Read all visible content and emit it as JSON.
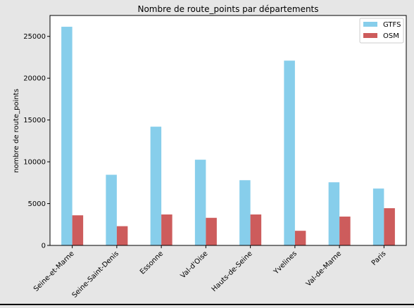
{
  "chart_data": {
    "type": "bar",
    "title": "Nombre de route_points par départements",
    "xlabel": "",
    "ylabel": "nombre de route_points",
    "categories": [
      "Seine-et-Marne",
      "Seine-Saint-Denis",
      "Essonne",
      "Val-d'Oise",
      "Hauts-de-Seine",
      "Yvelines",
      "Val-de-Marne",
      "Paris"
    ],
    "series": [
      {
        "name": "GTFS",
        "color": "#87ceeb",
        "values": [
          26150,
          8450,
          14200,
          10250,
          7800,
          22100,
          7550,
          6800
        ]
      },
      {
        "name": "OSM",
        "color": "#cd5c5c",
        "values": [
          3600,
          2300,
          3700,
          3300,
          3700,
          1750,
          3450,
          4450
        ]
      }
    ],
    "yticks": [
      0,
      5000,
      10000,
      15000,
      20000,
      25000
    ],
    "ylim": [
      0,
      27500
    ],
    "grid": false,
    "legend_position": "top-right"
  },
  "colors": {
    "background": "#e6e6e6",
    "plot_background": "#ffffff"
  }
}
